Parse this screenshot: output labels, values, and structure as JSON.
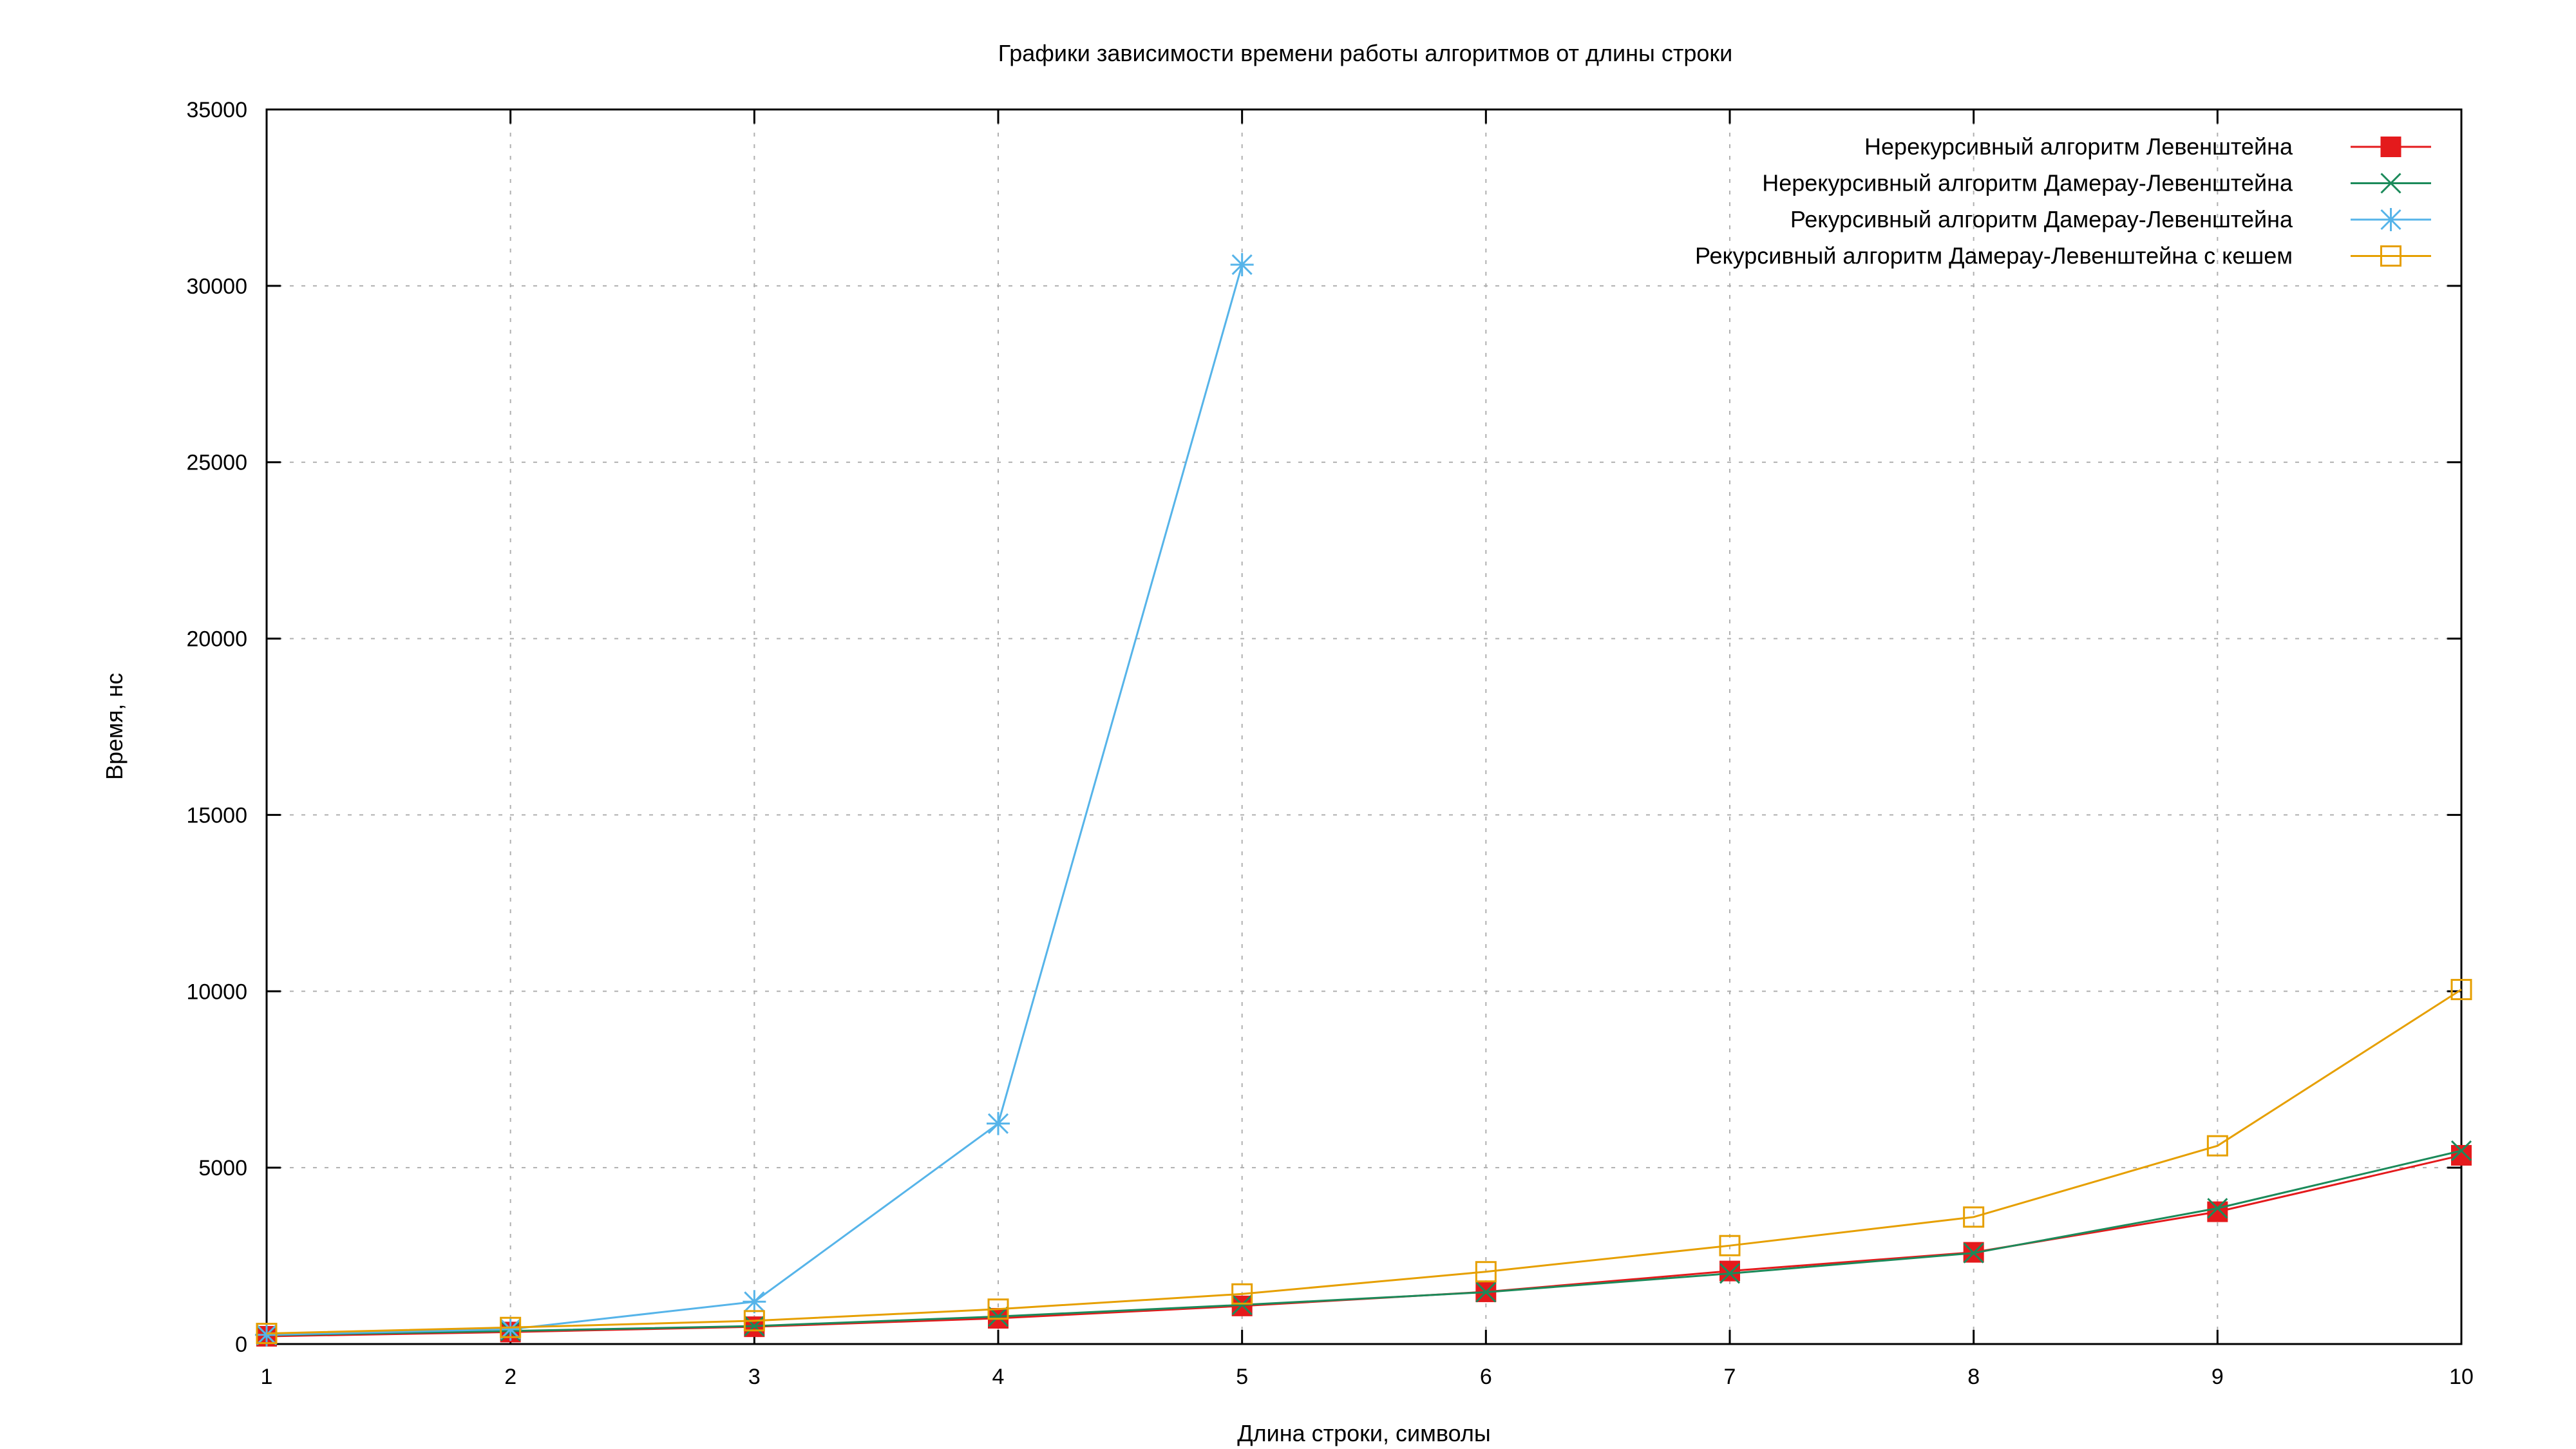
{
  "chart_data": {
    "type": "line",
    "title": "Графики зависимости времени работы алгоритмов от длины строки",
    "xlabel": "Длина строки, символы",
    "ylabel": "Время, нс",
    "xlim": [
      1,
      10
    ],
    "ylim": [
      0,
      35000
    ],
    "x_ticks": [
      1,
      2,
      3,
      4,
      5,
      6,
      7,
      8,
      9,
      10
    ],
    "y_ticks": [
      0,
      5000,
      10000,
      15000,
      20000,
      25000,
      30000,
      35000
    ],
    "grid": true,
    "legend_position": "top-right",
    "series": [
      {
        "name": "Нерекурсивный алгоритм Левенштейна",
        "color": "#e41a1c",
        "marker": "filled-square",
        "x": [
          1,
          2,
          3,
          4,
          5,
          6,
          7,
          8,
          9,
          10
        ],
        "values": [
          220,
          340,
          490,
          730,
          1080,
          1480,
          2070,
          2600,
          3750,
          5350
        ]
      },
      {
        "name": "Нерекурсивный алгоритм Дамерау-Левенштейна",
        "color": "#1b8a5a",
        "marker": "x",
        "x": [
          1,
          2,
          3,
          4,
          5,
          6,
          7,
          8,
          9,
          10
        ],
        "values": [
          250,
          370,
          510,
          780,
          1110,
          1470,
          2000,
          2580,
          3850,
          5480
        ]
      },
      {
        "name": "Рекурсивный алгоритм Дамерау-Левенштейна",
        "color": "#56b4e9",
        "marker": "star",
        "x": [
          1,
          2,
          3,
          4,
          5
        ],
        "values": [
          260,
          420,
          1200,
          6250,
          30600
        ]
      },
      {
        "name": "Рекурсивный алгоритм Дамерау-Левенштейна с кешем",
        "color": "#e69f00",
        "marker": "open-square",
        "x": [
          1,
          2,
          3,
          4,
          5,
          6,
          7,
          8,
          9,
          10
        ],
        "values": [
          300,
          470,
          660,
          990,
          1420,
          2050,
          2790,
          3600,
          5620,
          10050
        ]
      }
    ]
  }
}
